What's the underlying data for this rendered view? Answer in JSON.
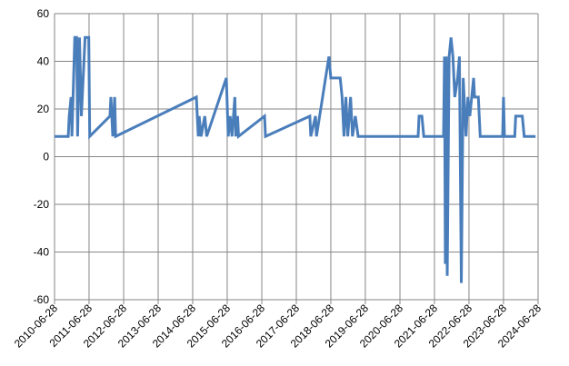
{
  "chart_data": {
    "type": "line",
    "color": "#4a7ebb",
    "grid": true,
    "x": [
      "2010-06-28",
      "2010-11-20",
      "2010-11-30",
      "2010-12-20",
      "2010-12-29",
      "2011-01-28",
      "2011-02-17",
      "2011-02-27",
      "2011-03-19",
      "2011-04-08",
      "2011-04-27",
      "2011-05-17",
      "2011-06-25",
      "2011-07-05",
      "2012-02-04",
      "2012-02-14",
      "2012-03-05",
      "2012-03-25",
      "2012-04-04",
      "2014-08-06",
      "2014-08-26",
      "2014-09-05",
      "2014-09-25",
      "2014-11-03",
      "2014-11-23",
      "2015-06-19",
      "2015-07-09",
      "2015-07-29",
      "2015-08-18",
      "2015-09-17",
      "2015-09-27",
      "2015-10-16",
      "2015-10-26",
      "2016-07-27",
      "2016-08-06",
      "2017-11-18",
      "2017-11-28",
      "2018-01-17",
      "2018-01-27",
      "2018-06-08",
      "2018-06-28",
      "2018-10-05",
      "2018-10-25",
      "2018-11-14",
      "2018-12-04",
      "2018-12-24",
      "2019-01-23",
      "2019-02-12",
      "2019-03-14",
      "2019-04-13",
      "2021-01-06",
      "2021-01-16",
      "2021-02-15",
      "2021-03-07",
      "2021-10-02",
      "2021-10-12",
      "2021-10-21",
      "2021-10-31",
      "2021-11-10",
      "2021-11-30",
      "2021-12-20",
      "2022-01-09",
      "2022-01-29",
      "2022-02-28",
      "2022-03-19",
      "2022-04-08",
      "2022-04-28",
      "2022-05-28",
      "2022-06-17",
      "2022-07-07",
      "2022-07-27",
      "2022-08-16",
      "2022-08-26",
      "2022-10-05",
      "2022-10-25",
      "2023-06-19",
      "2023-06-28",
      "2023-07-08",
      "2023-10-25",
      "2023-11-04",
      "2024-01-13",
      "2024-02-02",
      "2024-06-01"
    ],
    "values": [
      8.5,
      8.5,
      17,
      25,
      8.5,
      50,
      50,
      8.5,
      50,
      17,
      33,
      50,
      50,
      8.5,
      17,
      25,
      8.5,
      25,
      8.5,
      25,
      8.5,
      17,
      8.5,
      17,
      8.5,
      33,
      8.5,
      17,
      8.5,
      25,
      8.5,
      17,
      8.5,
      17,
      8.5,
      17,
      8.5,
      17,
      8.5,
      42,
      33,
      33,
      25,
      8.5,
      25,
      8.5,
      25,
      8.5,
      17,
      8.5,
      8.5,
      17,
      17,
      8.5,
      8.5,
      42,
      -45,
      42,
      -50,
      42,
      50,
      42,
      25,
      33,
      42,
      -53,
      33,
      8.5,
      25,
      17,
      25,
      33,
      25,
      25,
      8.5,
      8.5,
      25,
      8.5,
      8.5,
      17,
      17,
      8.5,
      8.5
    ],
    "xlim": [
      "2010-06-28",
      "2024-06-28"
    ],
    "xticks": [
      "2010-06-28",
      "2011-06-28",
      "2012-06-28",
      "2013-06-28",
      "2014-06-28",
      "2015-06-28",
      "2016-06-28",
      "2017-06-28",
      "2018-06-28",
      "2019-06-28",
      "2020-06-28",
      "2021-06-28",
      "2022-06-28",
      "2023-06-28",
      "2024-06-28"
    ],
    "ylim": [
      -60,
      60
    ],
    "yticks": [
      -60,
      -40,
      -20,
      0,
      20,
      40,
      60
    ]
  }
}
